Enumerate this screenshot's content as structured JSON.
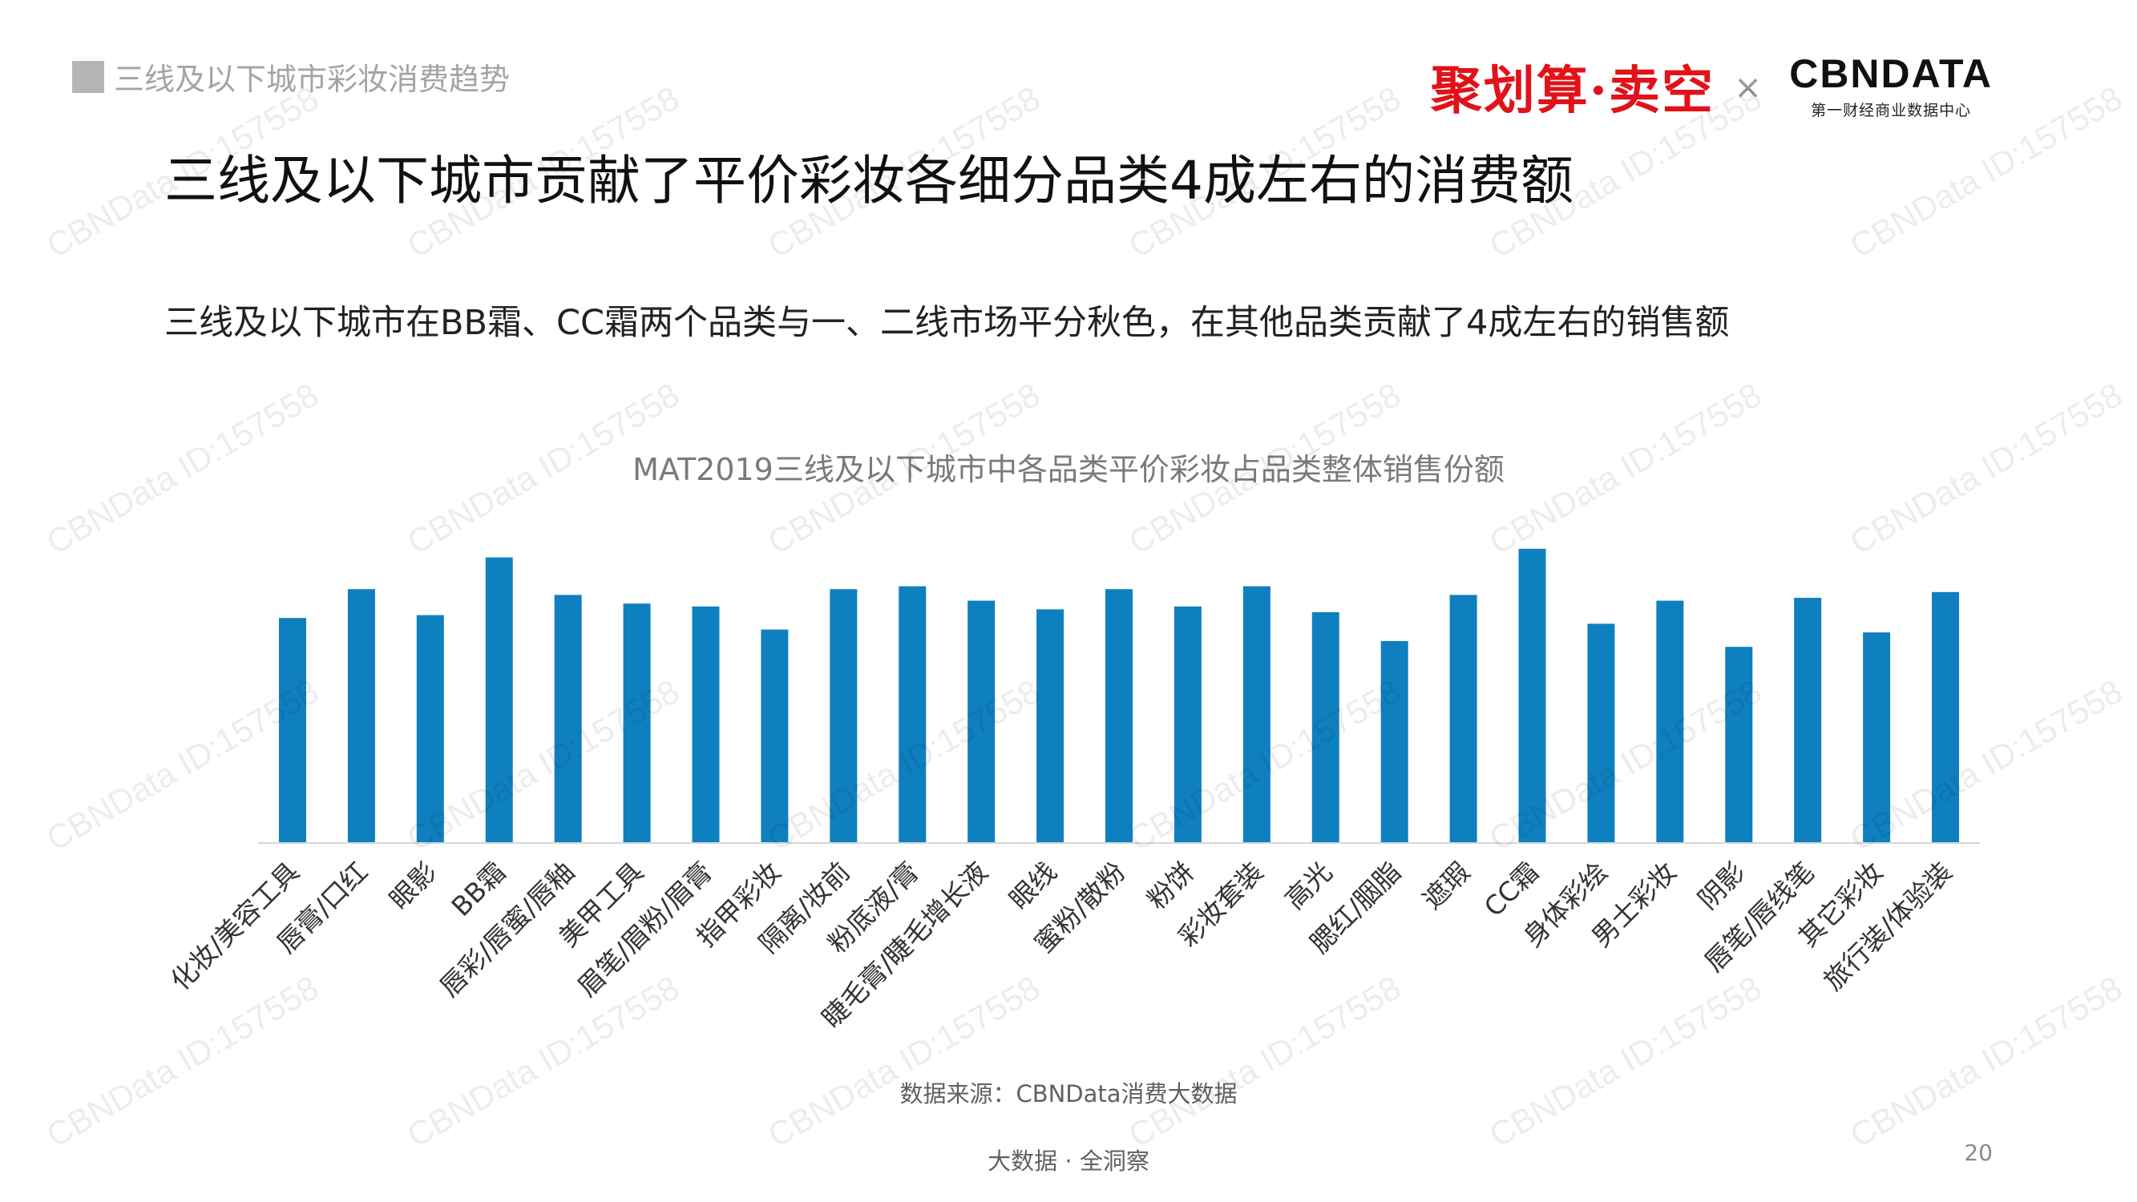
{
  "header": {
    "section_label": "三线及以下城市彩妆消费趋势",
    "brand_left": "聚划算·卖空",
    "brand_separator": "×",
    "brand_right_name": "CBNDATA",
    "brand_right_sub": "第一财经商业数据中心"
  },
  "main_title": "三线及以下城市贡献了平价彩妆各细分品类4成左右的消费额",
  "subtitle": "三线及以下城市在BB霜、CC霜两个品类与一、二线市场平分秋色，在其他品类贡献了4成左右的销售额",
  "chart_data": {
    "type": "bar",
    "title": "MAT2019三线及以下城市中各品类平价彩妆占品类整体销售份额",
    "xlabel": "",
    "ylabel": "",
    "ylim": [
      0,
      100
    ],
    "grid": false,
    "categories": [
      "化妆/美容工具",
      "唇膏/口红",
      "眼影",
      "BB霜",
      "唇彩/唇蜜/唇釉",
      "美甲工具",
      "眉笔/眉粉/眉膏",
      "指甲彩妆",
      "隔离/妆前",
      "粉底液/膏",
      "睫毛膏/睫毛增长液",
      "眼线",
      "蜜粉/散粉",
      "粉饼",
      "彩妆套装",
      "高光",
      "腮红/胭脂",
      "遮瑕",
      "CC霜",
      "身体彩绘",
      "男士彩妆",
      "阴影",
      "唇笔/唇线笔",
      "其它彩妆",
      "旅行装/体验装"
    ],
    "values": [
      39,
      44,
      39.5,
      49.5,
      43,
      41.5,
      41,
      37,
      44,
      44.5,
      42,
      40.5,
      44,
      41,
      44.5,
      40,
      35,
      43,
      51,
      38,
      42,
      34,
      42.5,
      36.5,
      43.5
    ],
    "bar_color": "#0f80bf",
    "axis_color": "#d6d6d6"
  },
  "source": "数据来源：CBNData消费大数据",
  "footer": "大数据 · 全洞察",
  "page_number": "20",
  "watermark_text": "CBNData ID:157558"
}
